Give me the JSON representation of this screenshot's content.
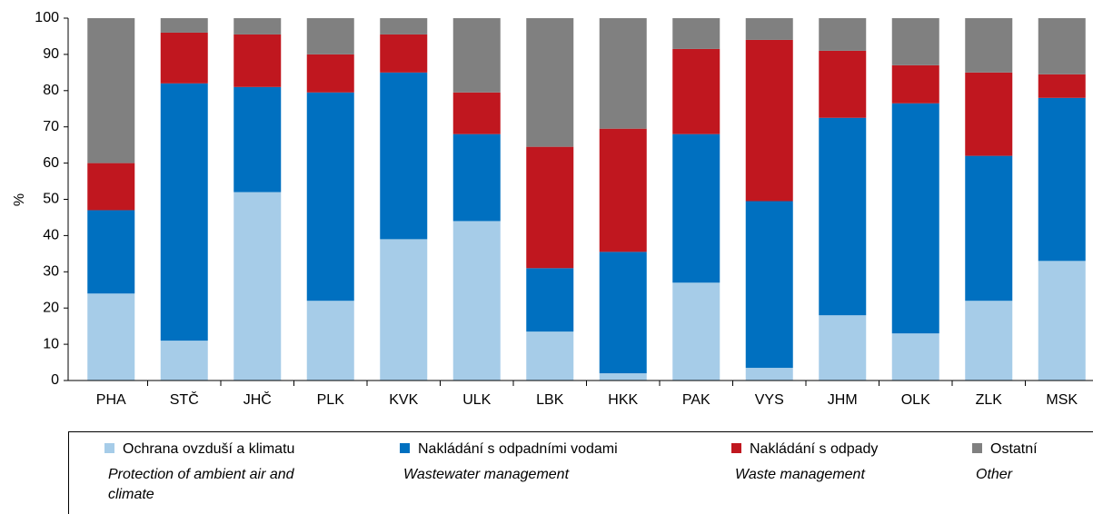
{
  "chart_data": {
    "type": "stacked_bar",
    "ylabel": "%",
    "categories": [
      "PHA",
      "STČ",
      "JHČ",
      "PLK",
      "KVK",
      "ULK",
      "LBK",
      "HKK",
      "PAK",
      "VYS",
      "JHM",
      "OLK",
      "ZLK",
      "MSK"
    ],
    "series": [
      {
        "name": "Ochrana ovzduší a klimatu",
        "translation": "Protection of ambient air and climate",
        "color": "#a6cce8",
        "values": [
          24,
          11,
          52,
          22,
          39,
          44,
          13.5,
          2,
          27,
          3.5,
          18,
          13,
          22,
          33
        ]
      },
      {
        "name": "Nakládání s odpadními vodami",
        "translation": "Wastewater management",
        "color": "#0070c0",
        "values": [
          23,
          71,
          29,
          57.5,
          46,
          24,
          17.5,
          33.5,
          41,
          46,
          54.5,
          63.5,
          40,
          45
        ]
      },
      {
        "name": "Nakládání s odpady",
        "translation": "Waste management",
        "color": "#c0171f",
        "values": [
          13,
          14,
          14.5,
          10.5,
          10.5,
          11.5,
          33.5,
          34,
          23.5,
          44.5,
          18.5,
          10.5,
          23,
          6.5
        ]
      },
      {
        "name": "Ostatní",
        "translation": "Other",
        "color": "#808080",
        "values": [
          40,
          4,
          4.5,
          10,
          4.5,
          20.5,
          35.5,
          30.5,
          8.5,
          6,
          9,
          13,
          15,
          15.5
        ]
      }
    ],
    "ylim": [
      0,
      100
    ],
    "yticks": [
      0,
      10,
      20,
      30,
      40,
      50,
      60,
      70,
      80,
      90,
      100
    ]
  }
}
